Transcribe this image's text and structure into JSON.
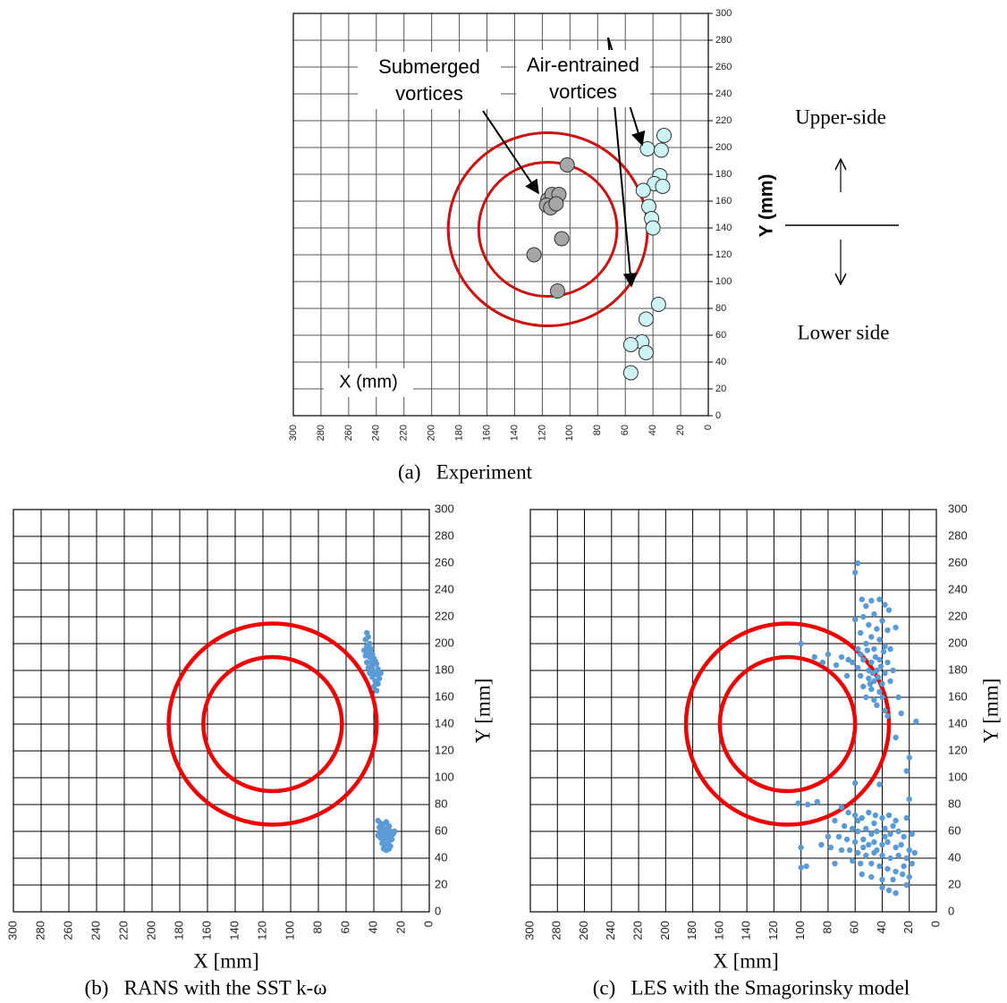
{
  "chart_data": [
    {
      "type": "scatter",
      "caption": "(a)   Experiment",
      "x_label": "X (mm)",
      "y_label": "Y (mm)",
      "xlim": [
        300,
        0
      ],
      "ylim": [
        0,
        300
      ],
      "xticks": [
        300,
        280,
        260,
        240,
        220,
        200,
        180,
        160,
        140,
        120,
        100,
        80,
        60,
        40,
        20,
        0
      ],
      "yticks": [
        0,
        20,
        40,
        60,
        80,
        100,
        120,
        140,
        160,
        180,
        200,
        220,
        240,
        260,
        280,
        300
      ],
      "grid": true,
      "grid_color": "#555555",
      "circles": [
        {
          "cx": 116,
          "cy": 139,
          "r": 50,
          "color": "#cc1111"
        },
        {
          "cx": 116,
          "cy": 139,
          "r": 72,
          "color": "#cc1111"
        }
      ],
      "series": [
        {
          "color": "#a6a6a6",
          "points": [
            [
              102,
              187
            ],
            [
              116,
              161
            ],
            [
              113,
              165
            ],
            [
              108,
              165
            ],
            [
              117,
              157
            ],
            [
              114,
              155
            ],
            [
              110,
              158
            ],
            [
              106,
              132
            ],
            [
              126,
              120
            ],
            [
              109,
              93
            ]
          ]
        },
        {
          "color": "#cdf5f5",
          "points": [
            [
              32,
              209
            ],
            [
              44,
              199
            ],
            [
              34,
              198
            ],
            [
              35,
              179
            ],
            [
              39,
              173
            ],
            [
              33,
              171
            ],
            [
              47,
              168
            ],
            [
              43,
              156
            ],
            [
              41,
              147
            ],
            [
              40,
              140
            ],
            [
              36,
              83
            ],
            [
              45,
              72
            ],
            [
              48,
              55
            ],
            [
              56,
              53
            ],
            [
              45,
              47
            ],
            [
              56,
              32
            ]
          ]
        }
      ],
      "annotations": [
        {
          "lines": [
            "Submerged",
            "vortices"
          ]
        },
        {
          "lines": [
            "Air-entrained",
            "vortices"
          ]
        }
      ],
      "side_labels": [
        "Upper-side",
        "Lower side"
      ]
    },
    {
      "type": "scatter",
      "caption": "(b)   RANS with the SST k-ω",
      "x_label": "X [mm]",
      "y_label": "Y [mm]",
      "xlim": [
        300,
        0
      ],
      "ylim": [
        0,
        300
      ],
      "xticks": [
        300,
        280,
        260,
        240,
        220,
        200,
        180,
        160,
        140,
        120,
        100,
        80,
        60,
        40,
        20,
        0
      ],
      "yticks": [
        0,
        20,
        40,
        60,
        80,
        100,
        120,
        140,
        160,
        180,
        200,
        220,
        240,
        260,
        280,
        300
      ],
      "grid": true,
      "grid_color": "#000000",
      "circles": [
        {
          "cx": 113,
          "cy": 140,
          "r": 50,
          "color": "#ee0000"
        },
        {
          "cx": 113,
          "cy": 140,
          "r": 75,
          "color": "#ee0000"
        }
      ],
      "series": [
        {
          "color": "#5b9bd5",
          "points": [
            [
              45,
              208
            ],
            [
              44,
              205
            ],
            [
              46,
              203
            ],
            [
              43,
              200
            ],
            [
              45,
              198
            ],
            [
              42,
              196
            ],
            [
              44,
              194
            ],
            [
              41,
              192
            ],
            [
              43,
              190
            ],
            [
              40,
              189
            ],
            [
              46,
              191
            ],
            [
              39,
              187
            ],
            [
              42,
              186
            ],
            [
              38,
              185
            ],
            [
              41,
              183
            ],
            [
              44,
              182
            ],
            [
              37,
              181
            ],
            [
              40,
              179
            ],
            [
              43,
              178
            ],
            [
              38,
              177
            ],
            [
              41,
              175
            ],
            [
              36,
              174
            ],
            [
              39,
              172
            ],
            [
              42,
              180
            ],
            [
              37,
              170
            ],
            [
              40,
              168
            ],
            [
              38,
              165
            ],
            [
              35,
              178
            ],
            [
              47,
              195
            ],
            [
              45,
              186
            ],
            [
              37,
              68
            ],
            [
              35,
              66
            ],
            [
              33,
              65
            ],
            [
              31,
              67
            ],
            [
              29,
              64
            ],
            [
              36,
              63
            ],
            [
              34,
              62
            ],
            [
              32,
              61
            ],
            [
              30,
              62
            ],
            [
              28,
              60
            ],
            [
              36,
              59
            ],
            [
              34,
              58
            ],
            [
              32,
              57
            ],
            [
              30,
              58
            ],
            [
              28,
              56
            ],
            [
              26,
              58
            ],
            [
              35,
              55
            ],
            [
              33,
              54
            ],
            [
              31,
              55
            ],
            [
              29,
              53
            ],
            [
              27,
              54
            ],
            [
              34,
              51
            ],
            [
              32,
              50
            ],
            [
              30,
              51
            ],
            [
              28,
              49
            ],
            [
              33,
              47
            ],
            [
              31,
              46
            ],
            [
              29,
              47
            ],
            [
              37,
              57
            ],
            [
              25,
              60
            ]
          ]
        }
      ]
    },
    {
      "type": "scatter",
      "caption": "(c)   LES with the Smagorinsky model",
      "x_label": "X [mm]",
      "y_label": "Y [mm]",
      "xlim": [
        300,
        0
      ],
      "ylim": [
        0,
        300
      ],
      "xticks": [
        300,
        280,
        260,
        240,
        220,
        200,
        180,
        160,
        140,
        120,
        100,
        80,
        60,
        40,
        20,
        0
      ],
      "yticks": [
        0,
        20,
        40,
        60,
        80,
        100,
        120,
        140,
        160,
        180,
        200,
        220,
        240,
        260,
        280,
        300
      ],
      "grid": true,
      "grid_color": "#000000",
      "circles": [
        {
          "cx": 110,
          "cy": 140,
          "r": 50,
          "color": "#ee0000"
        },
        {
          "cx": 110,
          "cy": 140,
          "r": 75,
          "color": "#ee0000"
        }
      ],
      "series": [
        {
          "color": "#5b9bd5",
          "points": [
            [
              58,
              260
            ],
            [
              60,
              253
            ],
            [
              55,
              233
            ],
            [
              48,
              232
            ],
            [
              42,
              233
            ],
            [
              52,
              228
            ],
            [
              38,
              229
            ],
            [
              35,
              225
            ],
            [
              46,
              222
            ],
            [
              54,
              220
            ],
            [
              60,
              218
            ],
            [
              40,
              217
            ],
            [
              50,
              214
            ],
            [
              44,
              211
            ],
            [
              36,
              210
            ],
            [
              30,
              212
            ],
            [
              56,
              208
            ],
            [
              48,
              205
            ],
            [
              42,
              203
            ],
            [
              52,
              200
            ],
            [
              38,
              198
            ],
            [
              100,
              200
            ],
            [
              58,
              196
            ],
            [
              46,
              196
            ],
            [
              34,
              196
            ],
            [
              80,
              192
            ],
            [
              70,
              190
            ],
            [
              65,
              188
            ],
            [
              62,
              186
            ],
            [
              54,
              188
            ],
            [
              48,
              186
            ],
            [
              42,
              188
            ],
            [
              36,
              186
            ],
            [
              58,
              182
            ],
            [
              50,
              180
            ],
            [
              44,
              180
            ],
            [
              38,
              178
            ],
            [
              32,
              180
            ],
            [
              56,
              176
            ],
            [
              50,
              174
            ],
            [
              46,
              172
            ],
            [
              40,
              170
            ],
            [
              34,
              172
            ],
            [
              54,
              168
            ],
            [
              48,
              166
            ],
            [
              42,
              164
            ],
            [
              52,
              160
            ],
            [
              46,
              158
            ],
            [
              40,
              160
            ],
            [
              44,
              154
            ],
            [
              38,
              150
            ],
            [
              36,
              146
            ],
            [
              15,
              142
            ],
            [
              28,
              160
            ],
            [
              74,
              184
            ],
            [
              84,
              186
            ],
            [
              66,
              176
            ],
            [
              26,
              148
            ],
            [
              30,
              130
            ],
            [
              20,
              115
            ],
            [
              22,
              105
            ],
            [
              90,
              190
            ],
            [
              56,
              192
            ],
            [
              45,
              190
            ],
            [
              39,
              194
            ],
            [
              51,
              195
            ],
            [
              47,
              178
            ],
            [
              43,
              175
            ],
            [
              49,
              170
            ],
            [
              41,
              183
            ],
            [
              60,
              96
            ],
            [
              42,
              95
            ],
            [
              102,
              81
            ],
            [
              95,
              80
            ],
            [
              88,
              82
            ],
            [
              70,
              78
            ],
            [
              65,
              74
            ],
            [
              60,
              72
            ],
            [
              55,
              70
            ],
            [
              50,
              74
            ],
            [
              45,
              72
            ],
            [
              40,
              70
            ],
            [
              35,
              72
            ],
            [
              30,
              68
            ],
            [
              20,
              84
            ],
            [
              22,
              70
            ],
            [
              75,
              68
            ],
            [
              68,
              64
            ],
            [
              62,
              62
            ],
            [
              58,
              60
            ],
            [
              52,
              62
            ],
            [
              48,
              58
            ],
            [
              44,
              60
            ],
            [
              38,
              62
            ],
            [
              34,
              58
            ],
            [
              28,
              60
            ],
            [
              24,
              56
            ],
            [
              18,
              58
            ],
            [
              80,
              56
            ],
            [
              72,
              56
            ],
            [
              66,
              54
            ],
            [
              60,
              52
            ],
            [
              54,
              54
            ],
            [
              50,
              50
            ],
            [
              46,
              52
            ],
            [
              40,
              50
            ],
            [
              36,
              52
            ],
            [
              30,
              48
            ],
            [
              26,
              50
            ],
            [
              20,
              46
            ],
            [
              16,
              44
            ],
            [
              85,
              50
            ],
            [
              78,
              48
            ],
            [
              70,
              46
            ],
            [
              64,
              46
            ],
            [
              58,
              44
            ],
            [
              52,
              42
            ],
            [
              46,
              44
            ],
            [
              40,
              42
            ],
            [
              34,
              40
            ],
            [
              28,
              42
            ],
            [
              22,
              40
            ],
            [
              100,
              48
            ],
            [
              96,
              34
            ],
            [
              100,
              33
            ],
            [
              75,
              36
            ],
            [
              62,
              38
            ],
            [
              56,
              36
            ],
            [
              48,
              36
            ],
            [
              42,
              34
            ],
            [
              36,
              32
            ],
            [
              30,
              30
            ],
            [
              24,
              34
            ],
            [
              18,
              36
            ],
            [
              55,
              28
            ],
            [
              48,
              26
            ],
            [
              40,
              24
            ],
            [
              32,
              24
            ],
            [
              25,
              28
            ],
            [
              40,
              18
            ],
            [
              35,
              16
            ],
            [
              30,
              14
            ],
            [
              22,
              20
            ],
            [
              20,
              26
            ],
            [
              58,
              68
            ],
            [
              46,
              66
            ],
            [
              38,
              56
            ],
            [
              32,
              64
            ],
            [
              54,
              48
            ],
            [
              44,
              46
            ]
          ]
        }
      ]
    }
  ]
}
